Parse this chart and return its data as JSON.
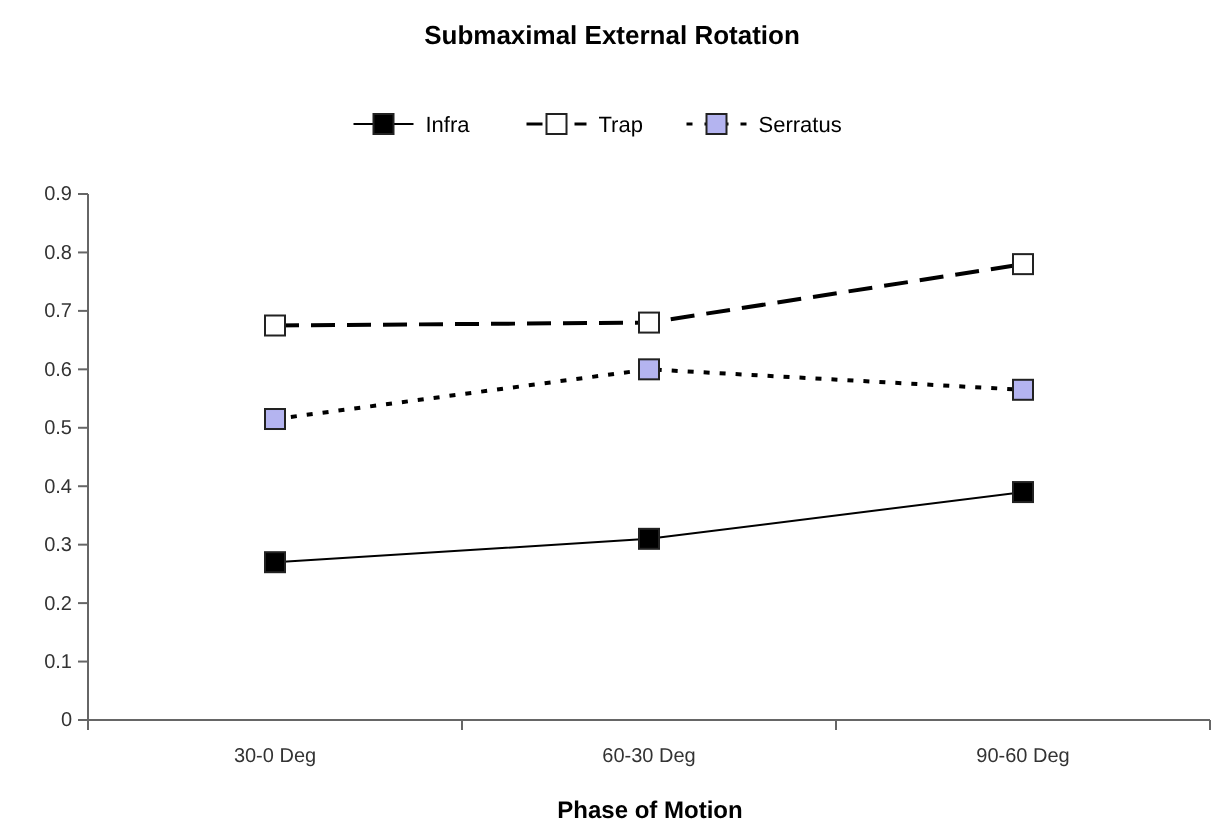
{
  "chart_data": {
    "type": "line",
    "title": "Submaximal External Rotation",
    "xlabel": "Phase of Motion",
    "categories": [
      "30-0 Deg",
      "60-30 Deg",
      "90-60 Deg"
    ],
    "series": [
      {
        "name": "Infra",
        "color": "#000000",
        "values": [
          0.27,
          0.31,
          0.39
        ],
        "line_style": "solid",
        "marker": "square"
      },
      {
        "name": "Trap",
        "color": "#ffffff",
        "values": [
          0.675,
          0.68,
          0.78
        ],
        "line_style": "dashed",
        "marker": "square"
      },
      {
        "name": "Serratus",
        "color": "#b4b4f0",
        "values": [
          0.515,
          0.6,
          0.565
        ],
        "line_style": "dotted",
        "marker": "square"
      }
    ],
    "ylim": [
      0,
      0.9
    ],
    "yticks": [
      0,
      0.1,
      0.2,
      0.3,
      0.4,
      0.5,
      0.6,
      0.7,
      0.8,
      0.9
    ],
    "grid": false,
    "legend": "top"
  }
}
